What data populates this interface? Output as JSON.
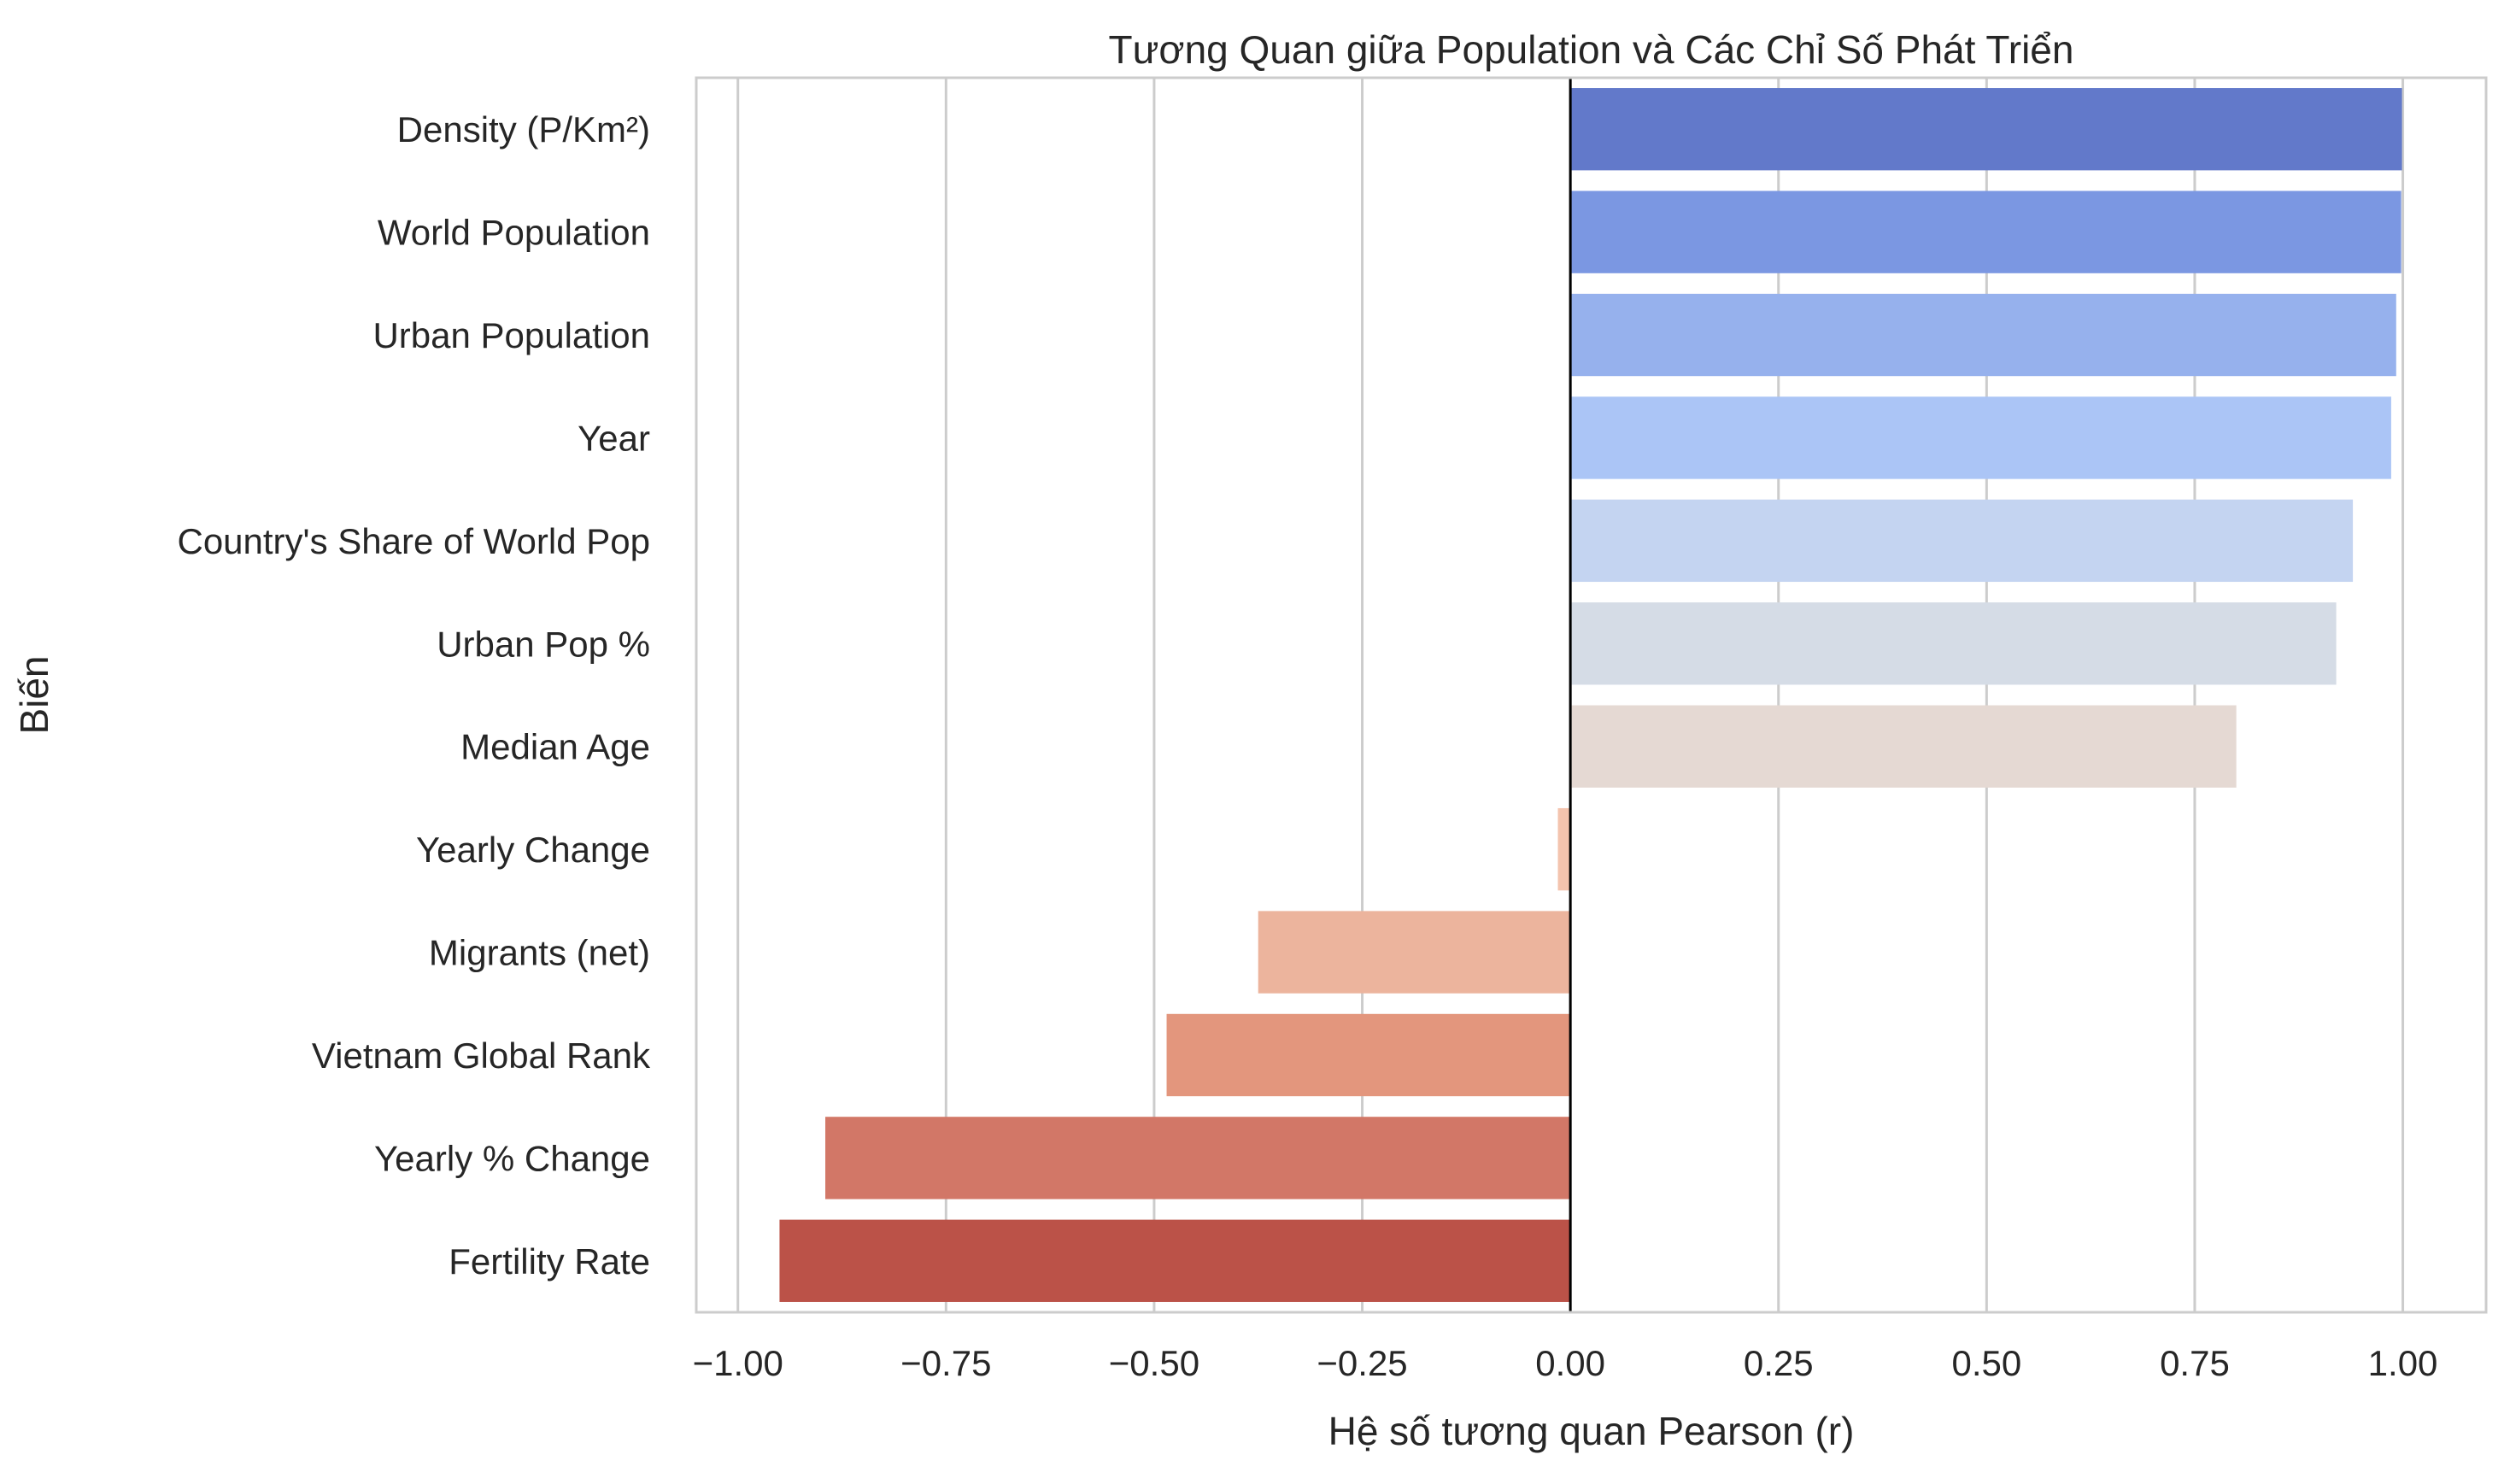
{
  "chart_data": {
    "type": "bar",
    "orientation": "horizontal",
    "title": "Tương Quan giữa Population và Các Chỉ Số Phát Triển",
    "xlabel": "Hệ số tương quan Pearson (r)",
    "ylabel": "Biến",
    "xlim": [
      -1.05,
      1.1
    ],
    "xticks": [
      -1.0,
      -0.75,
      -0.5,
      -0.25,
      0.0,
      0.25,
      0.5,
      0.75,
      1.0
    ],
    "xtick_labels": [
      "−1.00",
      "−0.75",
      "−0.50",
      "−0.25",
      "0.00",
      "0.25",
      "0.50",
      "0.75",
      "1.00"
    ],
    "grid": "vertical",
    "reference_line_x": 0,
    "categories": [
      "Density (P/Km²)",
      "World Population",
      "Urban Population",
      "Year",
      "Country's Share of World Pop",
      "Urban Pop %",
      "Median Age",
      "Yearly Change",
      "Migrants (net)",
      "Vietnam Global Rank",
      "Yearly % Change",
      "Fertility Rate"
    ],
    "values": [
      0.999,
      0.998,
      0.992,
      0.986,
      0.94,
      0.92,
      0.8,
      -0.015,
      -0.375,
      -0.485,
      -0.895,
      -0.95
    ],
    "colors": [
      "#6279ca",
      "#7b97e2",
      "#96b1ed",
      "#abc5f6",
      "#c4d4f1",
      "#d5dce6",
      "#e5d9d3",
      "#f4c4ae",
      "#ecb49d",
      "#e3967d",
      "#d27767",
      "#bb5248"
    ]
  }
}
